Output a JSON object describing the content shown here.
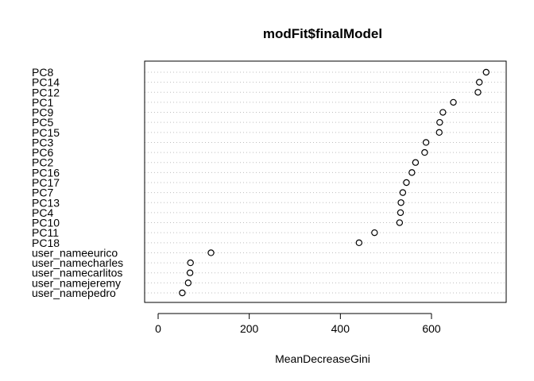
{
  "chart_data": {
    "type": "scatter",
    "title": "modFit$finalModel",
    "xlabel": "MeanDecreaseGini",
    "ylabel": "",
    "xlim": [
      0,
      720
    ],
    "x_ticks": [
      0,
      200,
      400,
      600
    ],
    "grid": "horizontal dotted",
    "marker": "open-circle",
    "points": [
      {
        "label": "PC8",
        "value": 720
      },
      {
        "label": "PC14",
        "value": 705
      },
      {
        "label": "PC12",
        "value": 702
      },
      {
        "label": "PC1",
        "value": 648
      },
      {
        "label": "PC9",
        "value": 625
      },
      {
        "label": "PC5",
        "value": 618
      },
      {
        "label": "PC15",
        "value": 617
      },
      {
        "label": "PC3",
        "value": 588
      },
      {
        "label": "PC6",
        "value": 585
      },
      {
        "label": "PC2",
        "value": 565
      },
      {
        "label": "PC16",
        "value": 557
      },
      {
        "label": "PC17",
        "value": 545
      },
      {
        "label": "PC7",
        "value": 537
      },
      {
        "label": "PC13",
        "value": 533
      },
      {
        "label": "PC4",
        "value": 532
      },
      {
        "label": "PC10",
        "value": 530
      },
      {
        "label": "PC11",
        "value": 475
      },
      {
        "label": "PC18",
        "value": 441
      },
      {
        "label": "user_nameeurico",
        "value": 116
      },
      {
        "label": "user_namecharles",
        "value": 71
      },
      {
        "label": "user_namecarlitos",
        "value": 70
      },
      {
        "label": "user_namejeremy",
        "value": 66
      },
      {
        "label": "user_namepedro",
        "value": 53
      }
    ]
  }
}
